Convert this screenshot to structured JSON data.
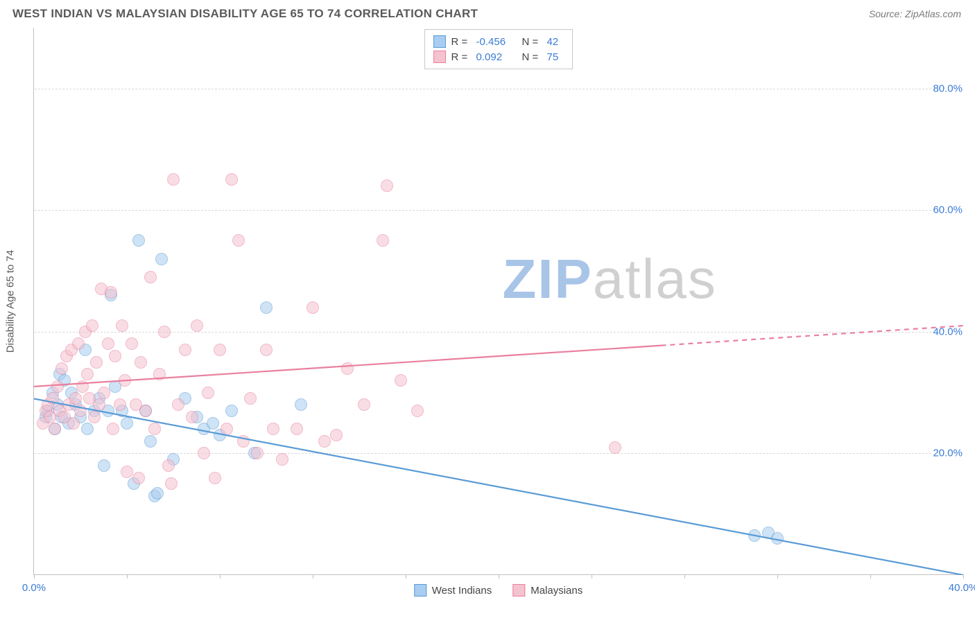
{
  "title": "WEST INDIAN VS MALAYSIAN DISABILITY AGE 65 TO 74 CORRELATION CHART",
  "source": "Source: ZipAtlas.com",
  "ylabel": "Disability Age 65 to 74",
  "watermark": {
    "zip": "ZIP",
    "atlas": "atlas",
    "zip_color": "#a8c5e8",
    "atlas_color": "#d0d0d0"
  },
  "chart": {
    "type": "scatter",
    "background_color": "#ffffff",
    "grid_color": "#d8d8d8",
    "axis_color": "#c0c0c0",
    "xlim": [
      0,
      40
    ],
    "ylim": [
      0,
      90
    ],
    "ytick_step": 20,
    "ytick_start": 20,
    "y_tick_labels": [
      "20.0%",
      "40.0%",
      "60.0%",
      "80.0%"
    ],
    "x_tick_positions": [
      0,
      4,
      8,
      12,
      16,
      20,
      24,
      28,
      32,
      36,
      40
    ],
    "x_origin_label": "0.0%",
    "x_end_label": "40.0%",
    "marker_radius": 9,
    "marker_opacity": 0.55,
    "line_width": 2.2,
    "label_fontsize": 15,
    "label_color": "#5a5a5a",
    "tick_label_color": "#3a7bd5"
  },
  "series": [
    {
      "name": "West Indians",
      "fill": "#a8cdf0",
      "stroke": "#5a9bd5",
      "R": "-0.456",
      "N": "42",
      "trend": {
        "x1": 0,
        "y1": 29,
        "x2": 40,
        "y2": 0,
        "dash_from_x": 40
      },
      "points": [
        [
          0.5,
          26
        ],
        [
          0.6,
          27
        ],
        [
          0.8,
          30
        ],
        [
          0.9,
          24
        ],
        [
          1.0,
          28
        ],
        [
          1.1,
          33
        ],
        [
          1.2,
          26
        ],
        [
          1.3,
          32
        ],
        [
          1.5,
          25
        ],
        [
          1.6,
          30
        ],
        [
          1.8,
          28
        ],
        [
          2.0,
          26
        ],
        [
          2.2,
          37
        ],
        [
          2.3,
          24
        ],
        [
          2.6,
          27
        ],
        [
          2.8,
          29
        ],
        [
          3.0,
          18
        ],
        [
          3.2,
          27
        ],
        [
          3.3,
          46
        ],
        [
          3.5,
          31
        ],
        [
          3.8,
          27
        ],
        [
          4.0,
          25
        ],
        [
          4.3,
          15
        ],
        [
          4.5,
          55
        ],
        [
          4.8,
          27
        ],
        [
          5.0,
          22
        ],
        [
          5.2,
          13
        ],
        [
          5.3,
          13.5
        ],
        [
          5.5,
          52
        ],
        [
          6.0,
          19
        ],
        [
          6.5,
          29
        ],
        [
          7.0,
          26
        ],
        [
          7.3,
          24
        ],
        [
          7.7,
          25
        ],
        [
          8.0,
          23
        ],
        [
          8.5,
          27
        ],
        [
          9.5,
          20
        ],
        [
          10.0,
          44
        ],
        [
          11.5,
          28
        ],
        [
          31.0,
          6.5
        ],
        [
          31.6,
          7
        ],
        [
          32.0,
          6
        ]
      ]
    },
    {
      "name": "Malaysians",
      "fill": "#f5c2cf",
      "stroke": "#e97f9e",
      "R": "0.092",
      "N": "75",
      "trend": {
        "x1": 0,
        "y1": 31,
        "x2": 40,
        "y2": 41,
        "dash_from_x": 27
      },
      "points": [
        [
          0.4,
          25
        ],
        [
          0.5,
          27
        ],
        [
          0.6,
          28
        ],
        [
          0.7,
          26
        ],
        [
          0.8,
          29
        ],
        [
          0.9,
          24
        ],
        [
          1.0,
          31
        ],
        [
          1.1,
          27
        ],
        [
          1.2,
          34
        ],
        [
          1.3,
          26
        ],
        [
          1.4,
          36
        ],
        [
          1.5,
          28
        ],
        [
          1.6,
          37
        ],
        [
          1.7,
          25
        ],
        [
          1.8,
          29
        ],
        [
          1.9,
          38
        ],
        [
          2.0,
          27
        ],
        [
          2.1,
          31
        ],
        [
          2.2,
          40
        ],
        [
          2.3,
          33
        ],
        [
          2.4,
          29
        ],
        [
          2.5,
          41
        ],
        [
          2.6,
          26
        ],
        [
          2.7,
          35
        ],
        [
          2.8,
          28
        ],
        [
          2.9,
          47
        ],
        [
          3.0,
          30
        ],
        [
          3.2,
          38
        ],
        [
          3.3,
          46.5
        ],
        [
          3.4,
          24
        ],
        [
          3.5,
          36
        ],
        [
          3.7,
          28
        ],
        [
          3.8,
          41
        ],
        [
          3.9,
          32
        ],
        [
          4.0,
          17
        ],
        [
          4.2,
          38
        ],
        [
          4.4,
          28
        ],
        [
          4.5,
          16
        ],
        [
          4.6,
          35
        ],
        [
          4.8,
          27
        ],
        [
          5.0,
          49
        ],
        [
          5.2,
          24
        ],
        [
          5.4,
          33
        ],
        [
          5.6,
          40
        ],
        [
          5.8,
          18
        ],
        [
          5.9,
          15
        ],
        [
          6.0,
          65
        ],
        [
          6.2,
          28
        ],
        [
          6.5,
          37
        ],
        [
          6.8,
          26
        ],
        [
          7.0,
          41
        ],
        [
          7.3,
          20
        ],
        [
          7.5,
          30
        ],
        [
          7.8,
          16
        ],
        [
          8.0,
          37
        ],
        [
          8.3,
          24
        ],
        [
          8.5,
          65
        ],
        [
          8.8,
          55
        ],
        [
          9.0,
          22
        ],
        [
          9.3,
          29
        ],
        [
          9.6,
          20
        ],
        [
          10.0,
          37
        ],
        [
          10.3,
          24
        ],
        [
          10.7,
          19
        ],
        [
          11.3,
          24
        ],
        [
          12.0,
          44
        ],
        [
          12.5,
          22
        ],
        [
          13.0,
          23
        ],
        [
          13.5,
          34
        ],
        [
          14.2,
          28
        ],
        [
          15.0,
          55
        ],
        [
          15.2,
          64
        ],
        [
          15.8,
          32
        ],
        [
          16.5,
          27
        ],
        [
          25.0,
          21
        ]
      ]
    }
  ],
  "legend_top_labels": {
    "R": "R =",
    "N": "N ="
  },
  "legend_bottom": [
    {
      "label": "West Indians",
      "fill": "#a8cdf0",
      "stroke": "#5a9bd5"
    },
    {
      "label": "Malaysians",
      "fill": "#f5c2cf",
      "stroke": "#e97f9e"
    }
  ]
}
